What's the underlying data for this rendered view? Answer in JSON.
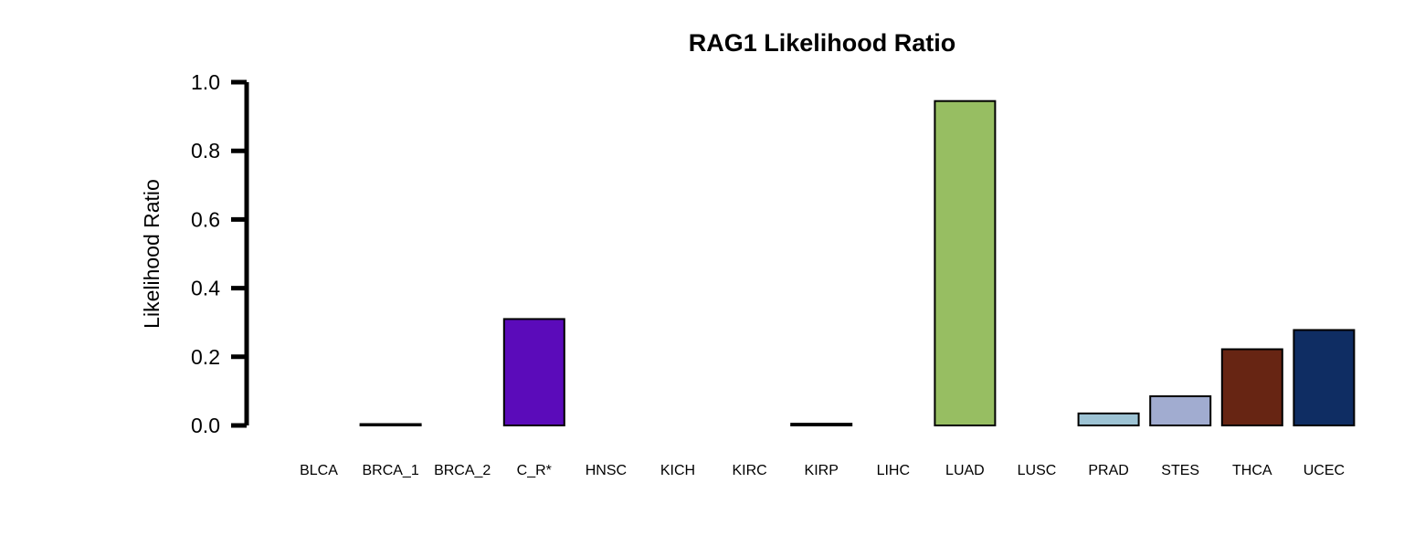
{
  "chart_data": {
    "type": "bar",
    "title": "RAG1 Likelihood Ratio",
    "xlabel": "",
    "ylabel": "Likelihood Ratio",
    "ylim": [
      0,
      1.0
    ],
    "yticks": [
      "0.0",
      "0.2",
      "0.4",
      "0.6",
      "0.8",
      "1.0"
    ],
    "ytick_values": [
      0,
      0.2,
      0.4,
      0.6,
      0.8,
      1.0
    ],
    "grid": false,
    "legend": "none",
    "categories": [
      "BLCA",
      "BRCA_1",
      "BRCA_2",
      "C_R*",
      "HNSC",
      "KICH",
      "KIRC",
      "KIRP",
      "LIHC",
      "LUAD",
      "LUSC",
      "PRAD",
      "STES",
      "THCA",
      "UCEC"
    ],
    "values": [
      0.0,
      0.004,
      0.0,
      0.31,
      0.0,
      0.0,
      0.0,
      0.005,
      0.0,
      0.945,
      0.0,
      0.035,
      0.085,
      0.222,
      0.278
    ],
    "colors": [
      "#000000",
      "#000000",
      "#000000",
      "#5B0BBA",
      "#000000",
      "#000000",
      "#000000",
      "#000000",
      "#000000",
      "#97BE62",
      "#000000",
      "#9DC3D4",
      "#A1ACD0",
      "#672513",
      "#0F2D63"
    ]
  }
}
